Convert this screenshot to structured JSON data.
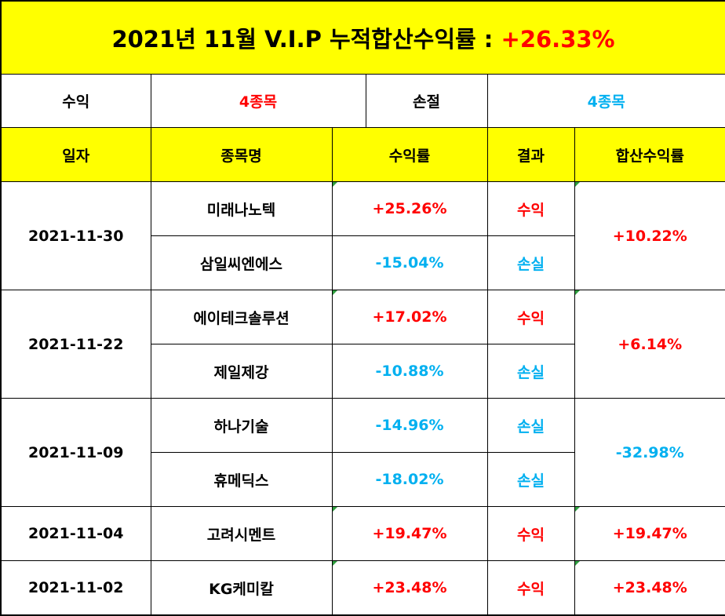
{
  "title": {
    "text": "2021년 11월 V.I.P 누적합산수익률 :",
    "value": "+26.33%"
  },
  "summary": {
    "gain_label": "수익",
    "gain_count": "4종목",
    "loss_label": "손절",
    "loss_count": "4종목"
  },
  "headers": {
    "date": "일자",
    "stock": "종목명",
    "return": "수익률",
    "result": "결과",
    "combined": "합산수익률"
  },
  "groups": [
    {
      "date": "2021-11-30",
      "combined": "+10.22%",
      "rows": [
        {
          "stock": "미래나노텍",
          "return": "+25.26%",
          "result": "수익"
        },
        {
          "stock": "삼일씨엔에스",
          "return": "-15.04%",
          "result": "손실"
        }
      ]
    },
    {
      "date": "2021-11-22",
      "combined": "+6.14%",
      "rows": [
        {
          "stock": "에이테크솔루션",
          "return": "+17.02%",
          "result": "수익"
        },
        {
          "stock": "제일제강",
          "return": "-10.88%",
          "result": "손실"
        }
      ]
    },
    {
      "date": "2021-11-09",
      "combined": "-32.98%",
      "rows": [
        {
          "stock": "하나기술",
          "return": "-14.96%",
          "result": "손실"
        },
        {
          "stock": "휴메딕스",
          "return": "-18.02%",
          "result": "손실"
        }
      ]
    },
    {
      "date": "2021-11-04",
      "combined": "+19.47%",
      "rows": [
        {
          "stock": "고려시멘트",
          "return": "+19.47%",
          "result": "수익"
        }
      ]
    },
    {
      "date": "2021-11-02",
      "combined": "+23.48%",
      "rows": [
        {
          "stock": "KG케미칼",
          "return": "+23.48%",
          "result": "수익"
        }
      ]
    }
  ],
  "colors": {
    "header_bg": "#ffff00",
    "positive": "#ff0000",
    "negative": "#00b0f0"
  }
}
